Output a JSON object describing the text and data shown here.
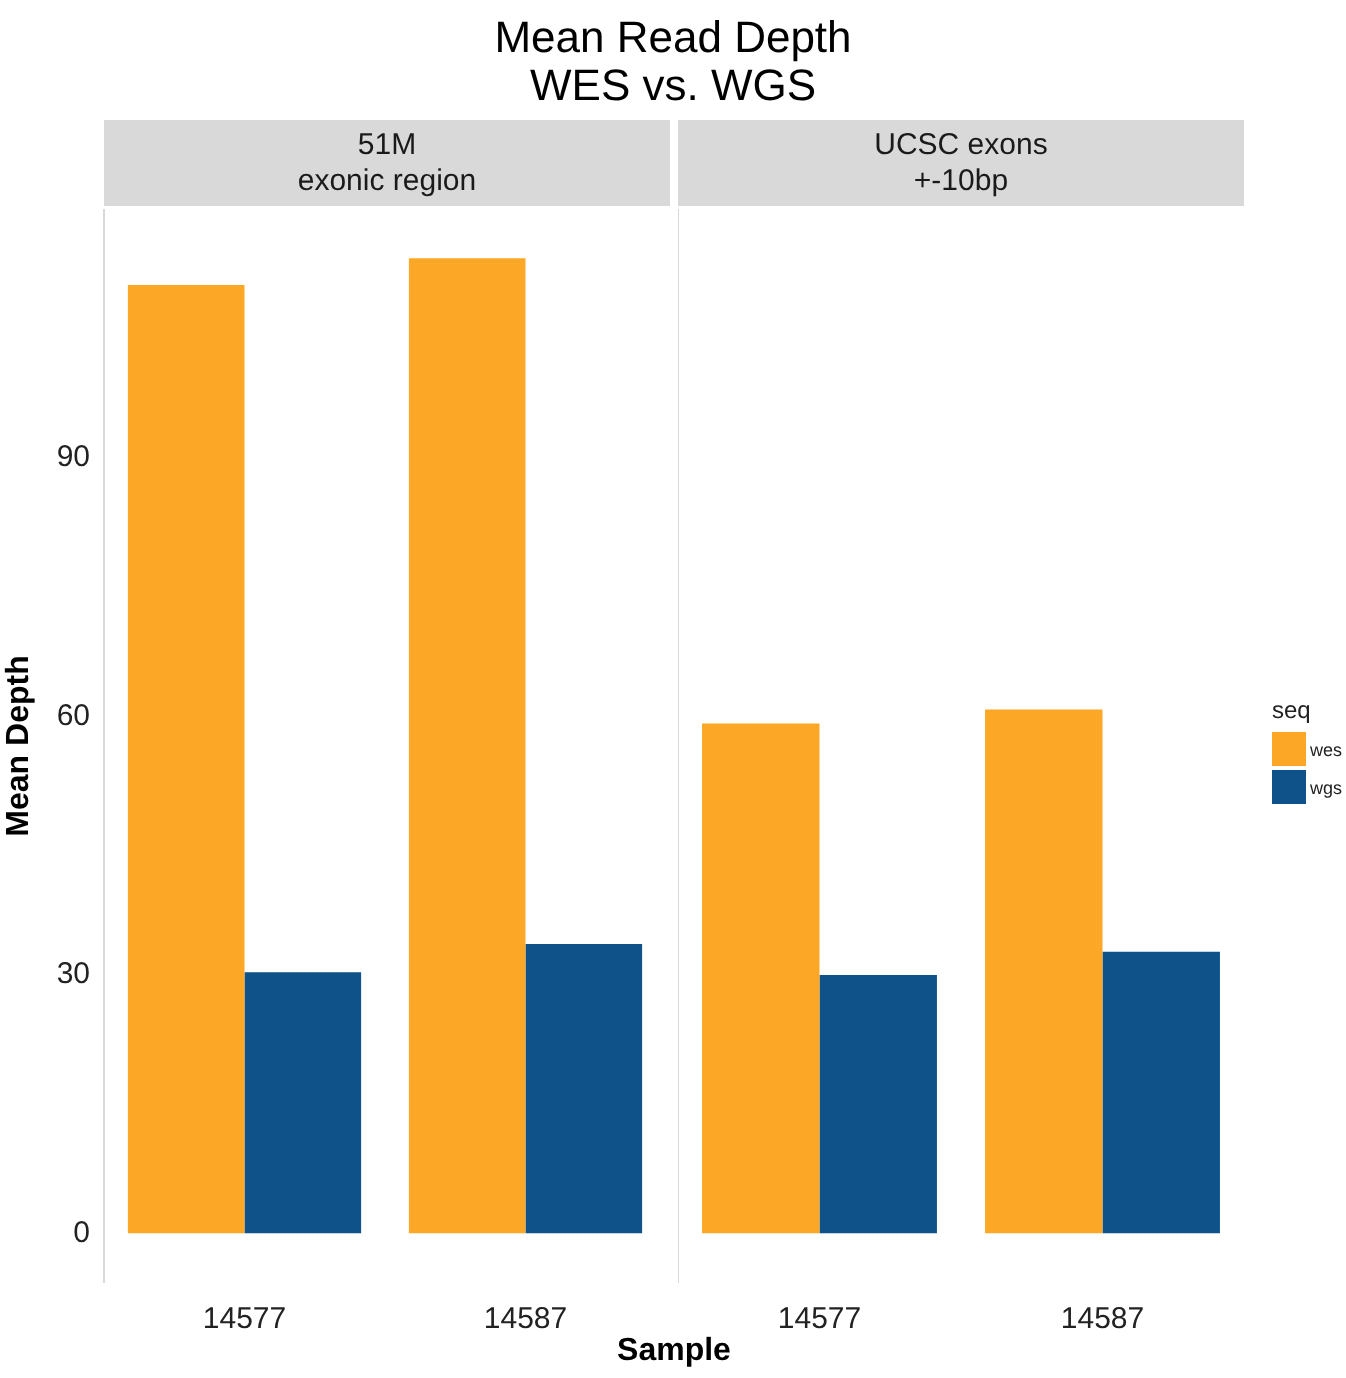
{
  "chart_data": [
    {
      "type": "bar",
      "title": "Mean Read Depth\nWES vs. WGS",
      "xlabel": "Sample",
      "ylabel": "Mean Depth",
      "annotations": [
        "51M\nexonic region"
      ],
      "categories": [
        "14577",
        "14587"
      ],
      "series": [
        {
          "name": "wes",
          "color": "#fca726",
          "values": [
            110.1,
            113.2
          ]
        },
        {
          "name": "wgs",
          "color": "#0f5189",
          "values": [
            30.3,
            33.6
          ]
        }
      ],
      "ylim": [
        -5.65,
        118.8
      ],
      "yticks": [
        0,
        30,
        60,
        90
      ],
      "grid": false,
      "legend": "right",
      "legend_title": "seq"
    },
    {
      "type": "bar",
      "annotations": [
        "UCSC exons\n+-10bp"
      ],
      "categories": [
        "14577",
        "14587"
      ],
      "series": [
        {
          "name": "wes",
          "color": "#fca726",
          "values": [
            59.2,
            60.8
          ]
        },
        {
          "name": "wgs",
          "color": "#0f5189",
          "values": [
            30.0,
            32.7
          ]
        }
      ],
      "ylim": [
        -5.65,
        118.8
      ],
      "yticks": [
        0,
        30,
        60,
        90
      ],
      "grid": false,
      "tick_labels": "x"
    }
  ]
}
